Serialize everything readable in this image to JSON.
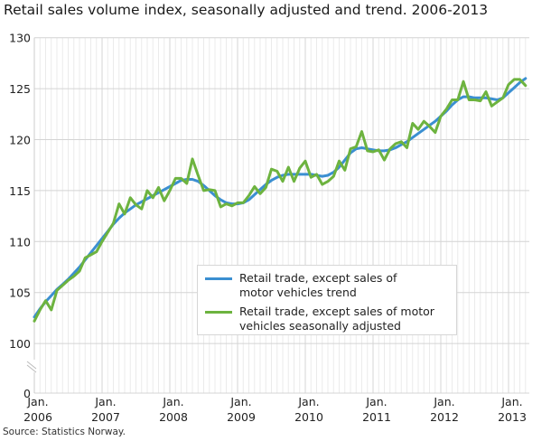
{
  "title": "Retail sales volume index, seasonally adjusted and trend. 2006-2013",
  "source": "Source: Statistics Norway.",
  "chart_data": {
    "type": "line",
    "title": "Retail sales volume index, seasonally adjusted and trend. 2006-2013",
    "xlabel": "",
    "ylabel": "",
    "x_start": "2006-01",
    "x_end": "2013-04",
    "frequency": "monthly",
    "x_tick_labels": [
      {
        "line1": "Jan.",
        "line2": "2006"
      },
      {
        "line1": "Jan.",
        "line2": "2007"
      },
      {
        "line1": "Jan.",
        "line2": "2008"
      },
      {
        "line1": "Jan.",
        "line2": "2009"
      },
      {
        "line1": "Jan.",
        "line2": "2010"
      },
      {
        "line1": "Jan.",
        "line2": "2011"
      },
      {
        "line1": "Jan.",
        "line2": "2012"
      },
      {
        "line1": "Jan.",
        "line2": "2013"
      }
    ],
    "y_ticks": [
      "0",
      "100",
      "105",
      "110",
      "115",
      "120",
      "125",
      "130"
    ],
    "ylim": [
      100,
      130
    ],
    "y_axis_break": "between 0 and 100",
    "grid": true,
    "legend_position": "center-right",
    "series": [
      {
        "name": "Retail trade, except sales of motor vehicles trend",
        "legend_lines": [
          "Retail trade, except sales of",
          "motor vehicles trend"
        ],
        "color": "#3b8fd1",
        "values": [
          102.6,
          103.4,
          104.1,
          104.7,
          105.3,
          105.8,
          106.3,
          106.9,
          107.5,
          108.2,
          108.9,
          109.6,
          110.3,
          111.0,
          111.7,
          112.3,
          112.8,
          113.2,
          113.6,
          113.9,
          114.2,
          114.5,
          114.8,
          115.1,
          115.4,
          115.7,
          116.0,
          116.1,
          116.1,
          115.9,
          115.5,
          115.0,
          114.5,
          114.1,
          113.8,
          113.7,
          113.7,
          113.8,
          114.1,
          114.6,
          115.1,
          115.6,
          116.0,
          116.3,
          116.5,
          116.6,
          116.6,
          116.6,
          116.6,
          116.6,
          116.5,
          116.4,
          116.5,
          116.8,
          117.3,
          118.0,
          118.7,
          119.1,
          119.2,
          119.1,
          119.0,
          118.9,
          118.9,
          119.0,
          119.2,
          119.5,
          119.8,
          120.2,
          120.6,
          121.0,
          121.4,
          121.8,
          122.3,
          122.8,
          123.4,
          123.9,
          124.2,
          124.2,
          124.1,
          124.1,
          124.1,
          124.0,
          123.9,
          124.1,
          124.6,
          125.1,
          125.6,
          126.0
        ]
      },
      {
        "name": "Retail trade, except sales of motor vehicles seasonally adjusted",
        "legend_lines": [
          "Retail trade, except sales of motor",
          "vehicles seasonally adjusted"
        ],
        "color": "#6db33f",
        "values": [
          102.2,
          103.3,
          104.2,
          103.3,
          105.2,
          105.7,
          106.2,
          106.6,
          107.1,
          108.4,
          108.7,
          109.0,
          110.0,
          110.9,
          111.8,
          113.7,
          112.7,
          114.3,
          113.6,
          113.2,
          115.0,
          114.3,
          115.3,
          114.0,
          115.0,
          116.2,
          116.2,
          115.7,
          118.1,
          116.5,
          115.0,
          115.1,
          115.0,
          113.4,
          113.7,
          113.5,
          113.8,
          113.8,
          114.5,
          115.4,
          114.7,
          115.3,
          117.1,
          116.9,
          115.9,
          117.3,
          115.9,
          117.2,
          117.9,
          116.3,
          116.6,
          115.6,
          115.9,
          116.4,
          117.9,
          117.0,
          119.1,
          119.3,
          120.8,
          118.9,
          118.8,
          119.0,
          118.0,
          119.1,
          119.6,
          119.8,
          119.2,
          121.6,
          121.0,
          121.8,
          121.3,
          120.7,
          122.3,
          123.0,
          123.9,
          123.9,
          125.7,
          123.9,
          123.9,
          123.8,
          124.7,
          123.3,
          123.7,
          124.1,
          125.4,
          125.9,
          125.9,
          125.3
        ]
      }
    ]
  }
}
